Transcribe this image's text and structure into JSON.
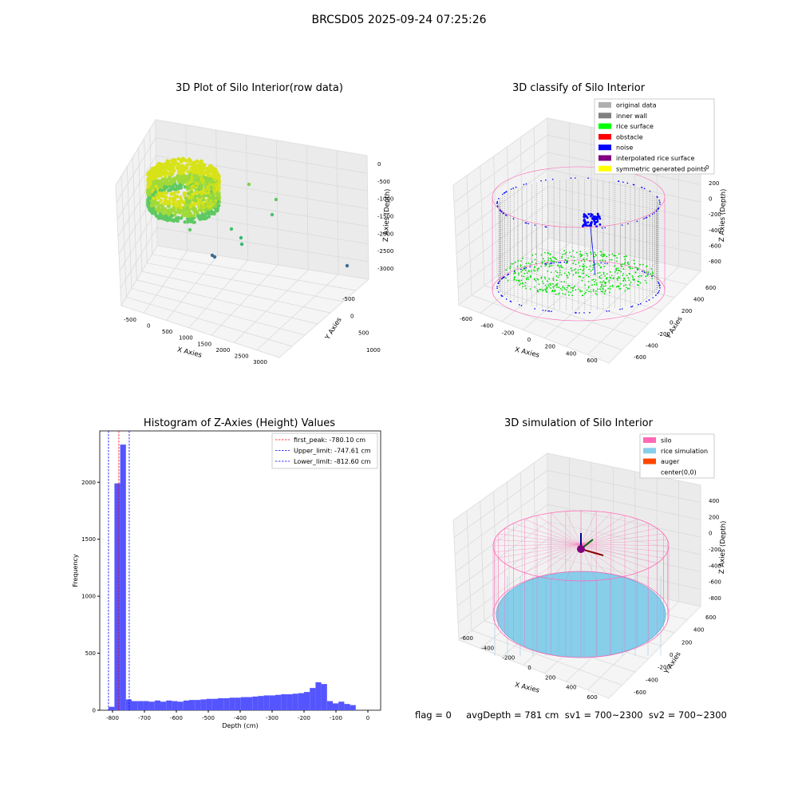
{
  "figure": {
    "suptitle": "BRCSD05 2025-09-24 07:25:26",
    "footer": "flag = 0     avgDepth = 781 cm  sv1 = 700~2300  sv2 = 700~2300"
  },
  "colors": {
    "wall_gray": "#808080",
    "rice_green": "#00e000",
    "noise_blue": "#0000ff",
    "silo_pink": "#ff69b4",
    "rice_sim": "#87ceeb",
    "auger": "#ff4500",
    "hist_bar": "#5555ff"
  },
  "chart_data": [
    {
      "type": "scatter",
      "subtype": "3d",
      "title": "3D Plot of Silo Interior(row data)",
      "xlabel": "X Axies",
      "ylabel": "Y Axies",
      "zlabel": "Z Axies (Depth)",
      "x_ticks": [
        "-500",
        "0",
        "500",
        "1000",
        "1500",
        "2000",
        "2500",
        "3000"
      ],
      "y_ticks": [
        "-500",
        "0",
        "500",
        "1000"
      ],
      "z_ticks": [
        "0",
        "-500",
        "-1000",
        "-1500",
        "-2000",
        "-2500",
        "-3000"
      ],
      "colormap": "viridis"
    },
    {
      "type": "scatter",
      "subtype": "3d",
      "title": "3D classify of Silo Interior",
      "xlabel": "X Axies",
      "ylabel": "Y Axies",
      "zlabel": "Z Axies (Depth)",
      "x_ticks": [
        "-600",
        "-400",
        "-200",
        "0",
        "200",
        "400",
        "600"
      ],
      "y_ticks": [
        "-600",
        "-400",
        "-200",
        "0",
        "200",
        "400",
        "600"
      ],
      "z_ticks": [
        "200",
        "0",
        "-200",
        "-400",
        "-600",
        "-800"
      ],
      "legend": [
        {
          "label": "original data",
          "color": "#b0b0b0"
        },
        {
          "label": "inner wall",
          "color": "#808080"
        },
        {
          "label": "rice surface",
          "color": "#00ff00"
        },
        {
          "label": "obstacle",
          "color": "#ff0000"
        },
        {
          "label": "noise",
          "color": "#0000ff"
        },
        {
          "label": "interpolated rice surface",
          "color": "#800080"
        },
        {
          "label": "symmetric generated points",
          "color": "#ffff00"
        }
      ],
      "z_extra_tick": "0"
    },
    {
      "type": "bar",
      "subtype": "histogram",
      "title": "Histogram of Z-Axies (Height) Values",
      "xlabel": "Depth (cm)",
      "ylabel": "Frequency",
      "xlim": [
        -840,
        40
      ],
      "ylim": [
        0,
        2450
      ],
      "x_ticks": [
        -800,
        -700,
        -600,
        -500,
        -400,
        -300,
        -200,
        -100,
        0
      ],
      "y_ticks": [
        0,
        500,
        1000,
        1500,
        2000
      ],
      "bin_width": 18,
      "bin_start": -812,
      "values": [
        30,
        1990,
        2330,
        95,
        80,
        80,
        80,
        75,
        85,
        75,
        85,
        80,
        75,
        85,
        90,
        90,
        95,
        100,
        100,
        105,
        105,
        110,
        110,
        115,
        115,
        120,
        125,
        130,
        130,
        135,
        140,
        140,
        145,
        150,
        160,
        195,
        245,
        230,
        80,
        60,
        75,
        55,
        45
      ],
      "vlines": [
        {
          "label": "first_peak: -780.10 cm",
          "x": -780.1,
          "color": "#ff0000"
        },
        {
          "label": "Upper_limit: -747.61 cm",
          "x": -747.61,
          "color": "#0000ff"
        },
        {
          "label": "Lower_limit: -812.60 cm",
          "x": -812.6,
          "color": "#0000ff"
        }
      ]
    },
    {
      "type": "scatter",
      "subtype": "3d",
      "title": "3D simulation of Silo Interior",
      "xlabel": "X Axies",
      "ylabel": "Y Axies",
      "zlabel": "Z Axies (Depth)",
      "x_ticks": [
        "-600",
        "-400",
        "-200",
        "0",
        "200",
        "400",
        "600"
      ],
      "y_ticks": [
        "-600",
        "-400",
        "-200",
        "0",
        "200",
        "400",
        "600"
      ],
      "z_ticks": [
        "400",
        "200",
        "0",
        "-200",
        "-400",
        "-600",
        "-800"
      ],
      "legend": [
        {
          "label": "silo",
          "color": "#ff69b4"
        },
        {
          "label": "rice simulation",
          "color": "#87ceeb"
        },
        {
          "label": "auger",
          "color": "#ff4500"
        },
        {
          "label": "center(0,0)",
          "color": ""
        }
      ]
    }
  ]
}
